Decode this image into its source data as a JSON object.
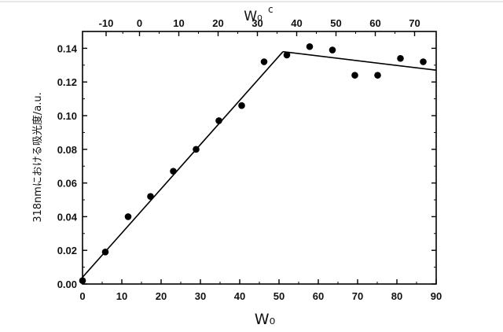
{
  "chart_data": {
    "type": "scatter",
    "xlabel": "W₀",
    "ylabel": "318nmにおける吸光度/a.u.",
    "x2label_main": "W₀",
    "x2label_sup": "c",
    "xlim": [
      0,
      90
    ],
    "ylim": [
      0,
      0.15
    ],
    "x_ticks": [
      0,
      10,
      20,
      30,
      40,
      50,
      60,
      70,
      80,
      90
    ],
    "x_tick_labels": [
      "0",
      "10",
      "20",
      "30",
      "40",
      "50",
      "60",
      "70",
      "80",
      "90"
    ],
    "y_ticks": [
      0,
      0.02,
      0.04,
      0.06,
      0.08,
      0.1,
      0.12,
      0.14
    ],
    "y_tick_labels": [
      "0.00",
      "0.02",
      "0.04",
      "0.06",
      "0.08",
      "0.10",
      "0.12",
      "0.14"
    ],
    "x2_ticks_in_x_units": [
      6,
      14.5,
      24.5,
      34.5,
      44.5,
      54.5,
      64.5,
      74.5,
      84.5
    ],
    "x2_tick_labels": [
      "-10",
      "0",
      "10",
      "20",
      "30",
      "40",
      "50",
      "60",
      "70"
    ],
    "grid": false,
    "series": [
      {
        "marker": "filled-circle",
        "color": "#000000",
        "x": [
          0,
          5.8,
          11.6,
          17.3,
          23.1,
          28.9,
          34.7,
          40.5,
          46.2,
          52.0,
          57.8,
          63.6,
          69.3,
          75.1,
          80.9,
          86.7
        ],
        "y": [
          0.002,
          0.019,
          0.04,
          0.052,
          0.067,
          0.08,
          0.097,
          0.106,
          0.132,
          0.136,
          0.141,
          0.139,
          0.124,
          0.124,
          0.134,
          0.132
        ]
      }
    ],
    "fit_lines": [
      {
        "color": "#000000",
        "x": [
          0,
          51
        ],
        "y": [
          0.004,
          0.138
        ]
      },
      {
        "color": "#000000",
        "x": [
          51,
          90
        ],
        "y": [
          0.138,
          0.127
        ]
      }
    ]
  }
}
